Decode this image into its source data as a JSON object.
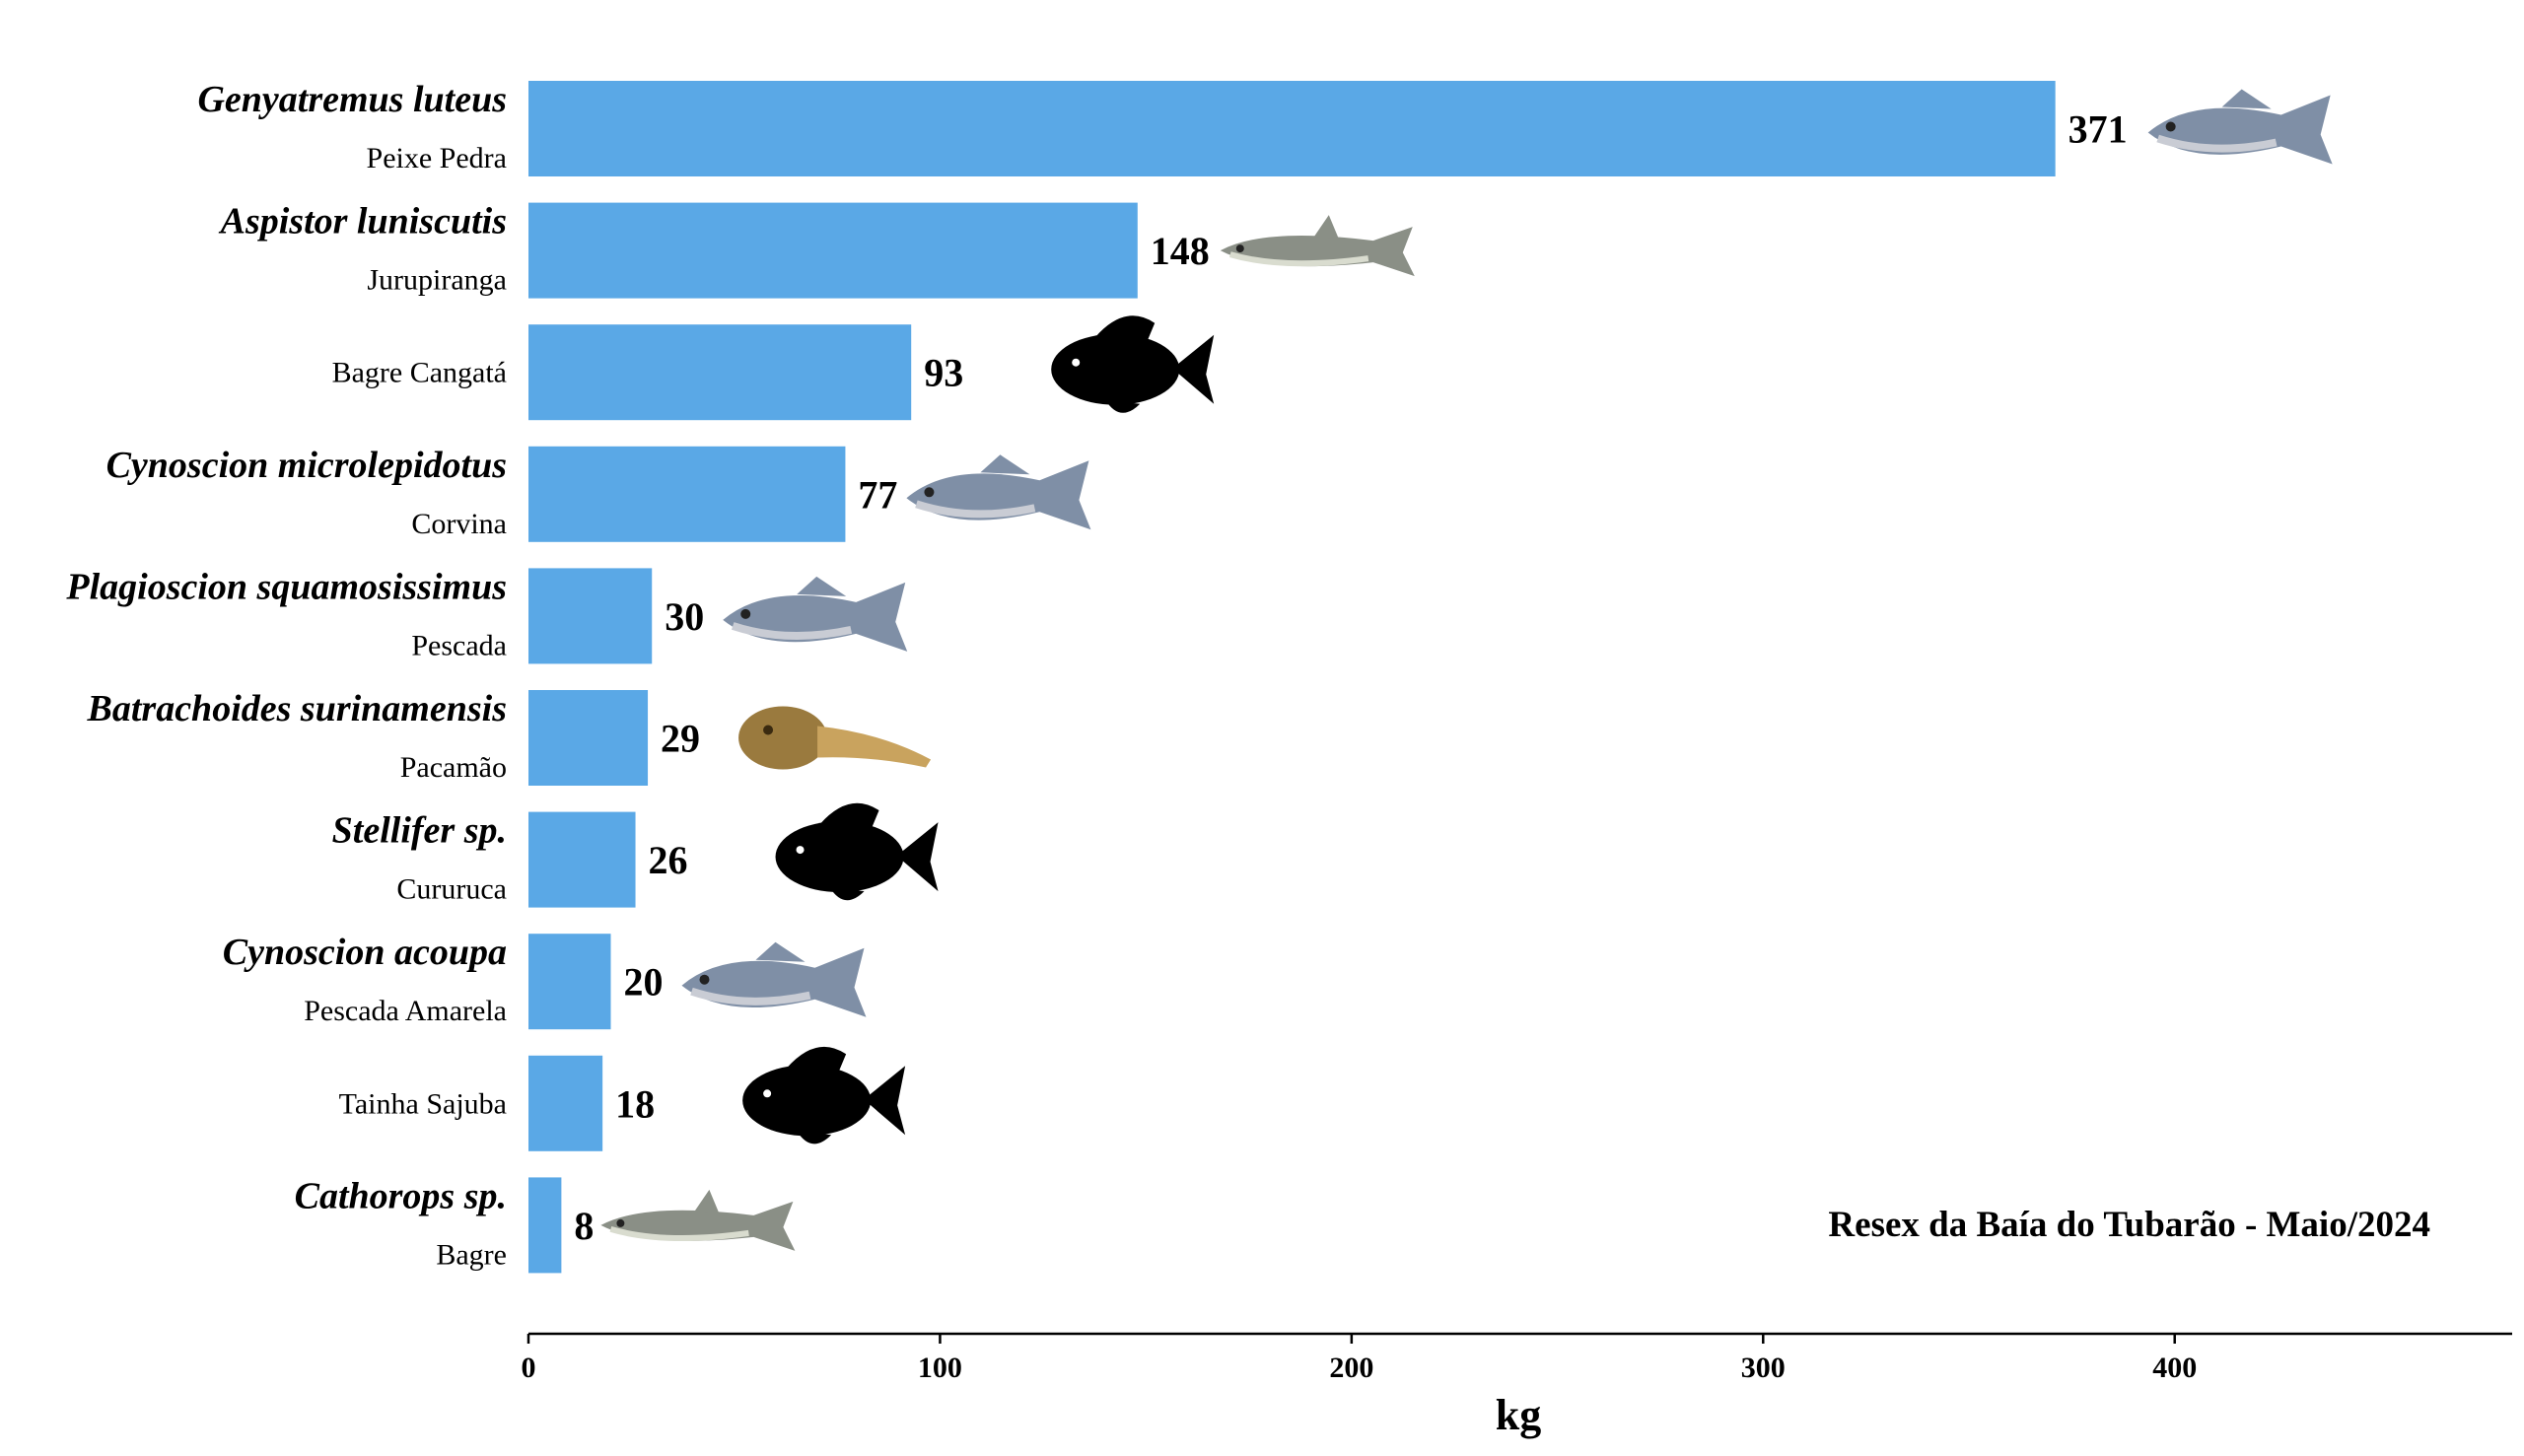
{
  "chart_data": {
    "type": "bar",
    "orientation": "horizontal",
    "categories": [
      {
        "scientific": "Genyatremus luteus",
        "common": "Peixe Pedra",
        "icon": "photo-fish-icon"
      },
      {
        "scientific": "Aspistor luniscutis",
        "common": "Jurupiranga",
        "icon": "photo-catfish-icon"
      },
      {
        "scientific": "",
        "common": "Bagre Cangatá",
        "icon": "silhouette-fish-icon"
      },
      {
        "scientific": "Cynoscion microlepidotus",
        "common": "Corvina",
        "icon": "photo-fish-icon"
      },
      {
        "scientific": "Plagioscion squamosissimus",
        "common": "Pescada",
        "icon": "photo-fish-icon"
      },
      {
        "scientific": "Batrachoides surinamensis",
        "common": "Pacamão",
        "icon": "photo-toadfish-icon"
      },
      {
        "scientific": "Stellifer sp.",
        "common": "Cururuca",
        "icon": "silhouette-fish-icon"
      },
      {
        "scientific": "Cynoscion acoupa",
        "common": "Pescada Amarela",
        "icon": "photo-fish-icon"
      },
      {
        "scientific": "",
        "common": "Tainha Sajuba",
        "icon": "silhouette-fish-icon"
      },
      {
        "scientific": "Cathorops sp.",
        "common": "Bagre",
        "icon": "photo-catfish-icon"
      }
    ],
    "values": [
      371,
      148,
      93,
      77,
      30,
      29,
      26,
      20,
      18,
      8
    ],
    "value_labels": [
      "371",
      "148",
      "93",
      "77",
      "30",
      "29",
      "26",
      "20",
      "18",
      "8"
    ],
    "xlabel": "kg",
    "xlim": [
      0,
      482
    ],
    "xticks": [
      0,
      100,
      200,
      300,
      400
    ],
    "xtick_labels": [
      "0",
      "100",
      "200",
      "300",
      "400"
    ],
    "annotation": "Resex da Baía do Tubarão - Maio/2024",
    "bar_color": "#5aa8e6",
    "grid": false
  }
}
